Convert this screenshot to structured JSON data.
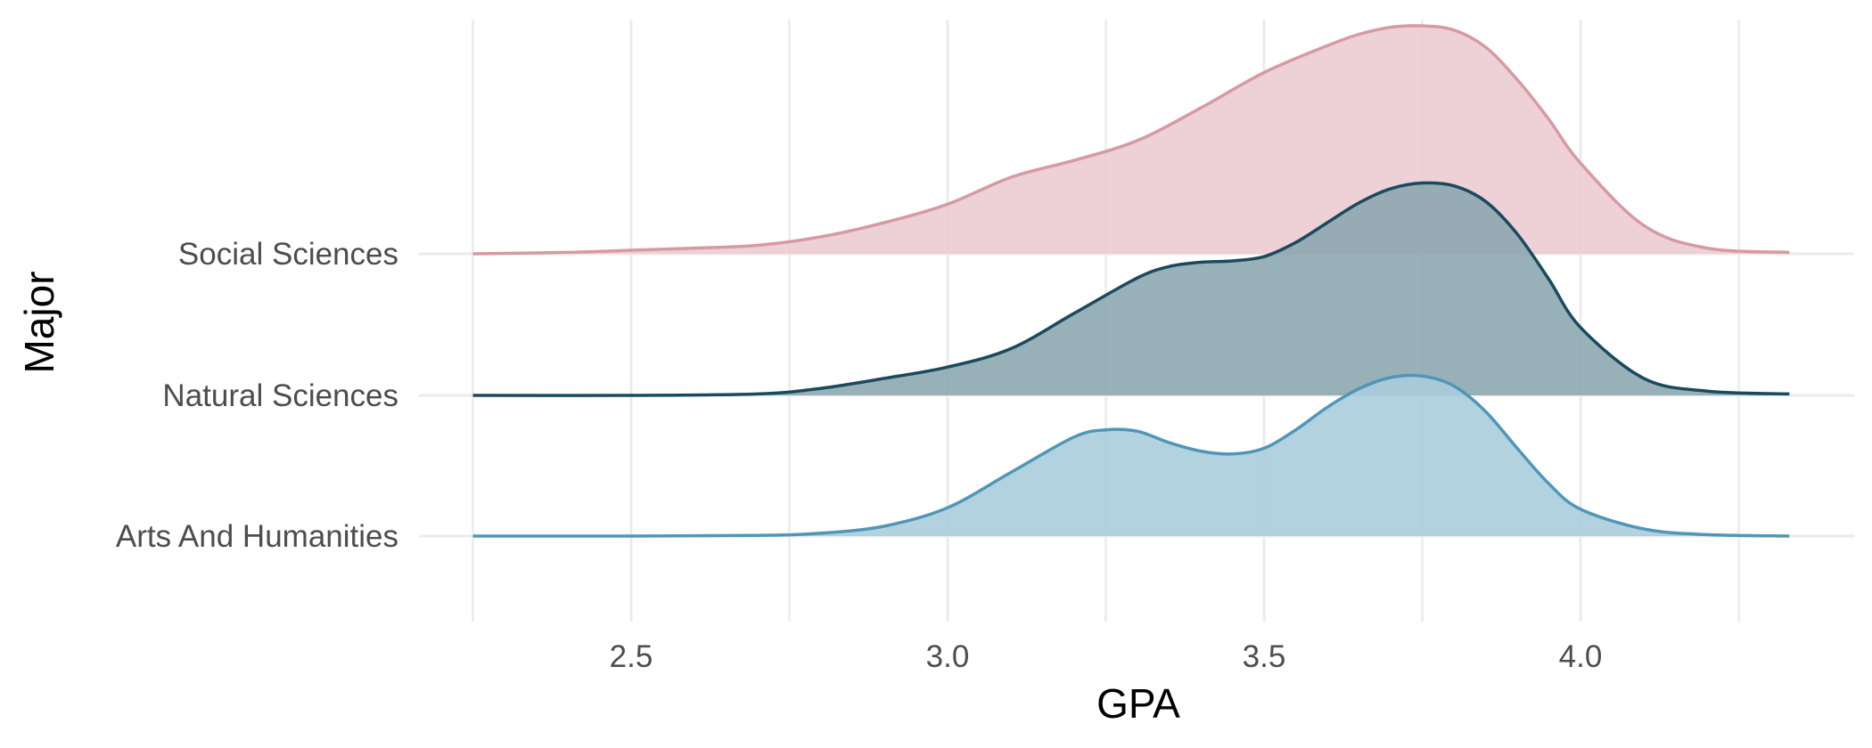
{
  "chart_data": {
    "type": "ridgeline",
    "xlabel": "GPA",
    "ylabel": "Major",
    "xlim": [
      2.25,
      4.33
    ],
    "x_ticks": [
      2.5,
      3.0,
      3.5,
      4.0
    ],
    "x_tick_labels": [
      "2.5",
      "3.0",
      "3.5",
      "4.0"
    ],
    "categories": [
      "Arts And Humanities",
      "Natural Sciences",
      "Social Sciences"
    ],
    "grid": true,
    "series": [
      {
        "name": "Arts And Humanities",
        "color": "#4f97b7",
        "fill": "#a9ccdc",
        "x": [
          2.25,
          2.5,
          2.7,
          2.8,
          2.9,
          3.0,
          3.1,
          3.2,
          3.25,
          3.3,
          3.35,
          3.4,
          3.45,
          3.5,
          3.55,
          3.6,
          3.65,
          3.7,
          3.75,
          3.8,
          3.85,
          3.9,
          3.95,
          4.0,
          4.1,
          4.2,
          4.33
        ],
        "density": [
          0.0,
          0.0,
          0.005,
          0.02,
          0.07,
          0.2,
          0.45,
          0.7,
          0.75,
          0.74,
          0.66,
          0.6,
          0.58,
          0.62,
          0.75,
          0.91,
          1.04,
          1.12,
          1.13,
          1.06,
          0.88,
          0.62,
          0.37,
          0.19,
          0.05,
          0.01,
          0.0
        ]
      },
      {
        "name": "Natural Sciences",
        "color": "#1a4a5e",
        "fill": "#8aa5ae",
        "x": [
          2.25,
          2.5,
          2.7,
          2.8,
          2.9,
          3.0,
          3.1,
          3.2,
          3.3,
          3.35,
          3.4,
          3.45,
          3.5,
          3.55,
          3.6,
          3.65,
          3.7,
          3.75,
          3.8,
          3.85,
          3.9,
          3.95,
          4.0,
          4.1,
          4.2,
          4.33
        ],
        "density": [
          0.0,
          0.0,
          0.01,
          0.05,
          0.12,
          0.2,
          0.33,
          0.58,
          0.83,
          0.91,
          0.94,
          0.95,
          0.98,
          1.08,
          1.22,
          1.36,
          1.46,
          1.5,
          1.48,
          1.37,
          1.14,
          0.82,
          0.48,
          0.12,
          0.03,
          0.01
        ]
      },
      {
        "name": "Social Sciences",
        "color": "#d69aa2",
        "fill": "#eacbd0",
        "x": [
          2.25,
          2.4,
          2.5,
          2.6,
          2.7,
          2.8,
          2.9,
          3.0,
          3.1,
          3.2,
          3.3,
          3.4,
          3.5,
          3.6,
          3.65,
          3.7,
          3.75,
          3.8,
          3.85,
          3.9,
          3.95,
          4.0,
          4.1,
          4.2,
          4.33
        ],
        "density": [
          0.0,
          0.01,
          0.025,
          0.04,
          0.06,
          0.12,
          0.22,
          0.35,
          0.54,
          0.66,
          0.8,
          1.03,
          1.28,
          1.47,
          1.55,
          1.6,
          1.61,
          1.58,
          1.46,
          1.23,
          0.95,
          0.64,
          0.2,
          0.04,
          0.01
        ]
      }
    ]
  }
}
